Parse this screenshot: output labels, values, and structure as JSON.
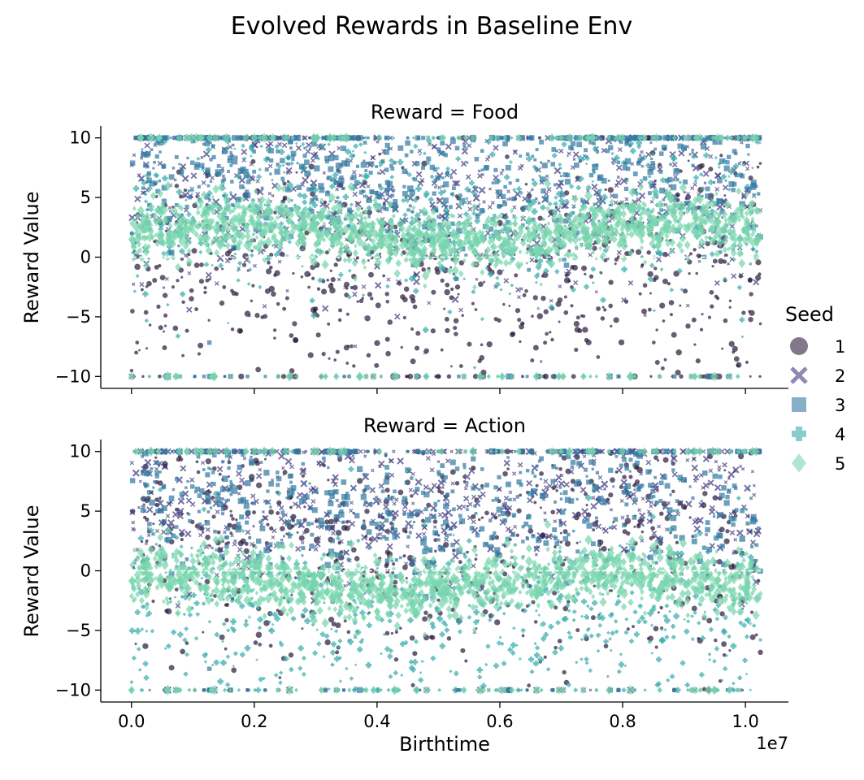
{
  "chart_data": {
    "type": "scatter",
    "title": "Evolved Rewards in Baseline Env",
    "facet_variable": "Reward",
    "xlabel": "Birthtime",
    "ylabel": "Reward Value",
    "x_offset_label": "1e7",
    "xlim": [
      -0.05,
      1.07
    ],
    "ylim": [
      -11,
      11
    ],
    "x_ticks": [
      0.0,
      0.2,
      0.4,
      0.6,
      0.8,
      1.0
    ],
    "x_tick_labels": [
      "0.0",
      "0.2",
      "0.4",
      "0.6",
      "0.8",
      "1.0"
    ],
    "y_ticks": [
      10,
      5,
      0,
      -5,
      -10
    ],
    "y_tick_labels": [
      "10",
      "5",
      "0",
      "−5",
      "−10"
    ],
    "reference_line": {
      "y": 0,
      "style": "dashed",
      "color": "#ffffff"
    },
    "grid": false,
    "x_range_data": [
      0.0,
      1.025
    ],
    "legend": {
      "title": "Seed",
      "placement": "right",
      "entries": [
        {
          "label": "1",
          "marker": "circle",
          "color": "#2d1e3e"
        },
        {
          "label": "2",
          "marker": "x",
          "color": "#403a80"
        },
        {
          "label": "3",
          "marker": "square",
          "color": "#357ba3"
        },
        {
          "label": "4",
          "marker": "plus",
          "color": "#38aaac"
        },
        {
          "label": "5",
          "marker": "diamond",
          "color": "#79d6ae"
        }
      ]
    },
    "panels": [
      {
        "title": "Reward = Food",
        "description_of_density": "dense band centered near +2 spanning roughly 0 to 4; clusters at +10 and -10 boundaries",
        "series": [
          {
            "name": "1",
            "center_y": -2.0,
            "spread": 5.0
          },
          {
            "name": "2",
            "center_y": 5.0,
            "spread": 4.0
          },
          {
            "name": "3",
            "center_y": 6.5,
            "spread": 3.0
          },
          {
            "name": "4",
            "center_y": 4.0,
            "spread": 4.0
          },
          {
            "name": "5",
            "center_y": 2.0,
            "spread": 1.2
          }
        ]
      },
      {
        "title": "Reward = Action",
        "description_of_density": "dense band centered near -1 spanning roughly -3 to 1; clusters at +10 and -10 boundaries",
        "series": [
          {
            "name": "1",
            "center_y": 2.0,
            "spread": 5.0
          },
          {
            "name": "2",
            "center_y": 6.0,
            "spread": 3.5
          },
          {
            "name": "3",
            "center_y": 5.5,
            "spread": 3.0
          },
          {
            "name": "4",
            "center_y": -4.0,
            "spread": 4.0
          },
          {
            "name": "5",
            "center_y": -1.0,
            "spread": 1.2
          }
        ]
      }
    ]
  }
}
